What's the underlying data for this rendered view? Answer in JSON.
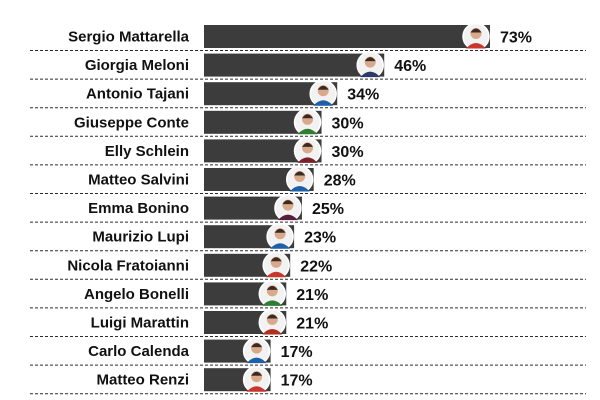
{
  "chart_data": {
    "type": "bar",
    "orientation": "horizontal",
    "unit": "%",
    "categories": [
      "Sergio Mattarella",
      "Giorgia Meloni",
      "Antonio Tajani",
      "Giuseppe Conte",
      "Elly Schlein",
      "Matteo Salvini",
      "Emma Bonino",
      "Maurizio Lupi",
      "Nicola Fratoianni",
      "Angelo Bonelli",
      "Luigi Marattin",
      "Carlo Calenda",
      "Matteo Renzi"
    ],
    "values": [
      73,
      46,
      34,
      30,
      30,
      28,
      25,
      23,
      22,
      21,
      21,
      17,
      17
    ],
    "labels": [
      "73%",
      "46%",
      "34%",
      "30%",
      "30%",
      "28%",
      "25%",
      "23%",
      "22%",
      "21%",
      "21%",
      "17%",
      "17%"
    ],
    "xlim": [
      0,
      73
    ],
    "grid": false,
    "bar_color": "#3c3c3c",
    "avatar_accents": [
      "#c8372d",
      "#2b3a67",
      "#1e5fa8",
      "#2e7d32",
      "#7a1f2b",
      "#1e5fa8",
      "#5a1e3c",
      "#1e5fa8",
      "#c8372d",
      "#2e7d32",
      "#b03020",
      "#1e5fa8",
      "#c8372d"
    ]
  }
}
